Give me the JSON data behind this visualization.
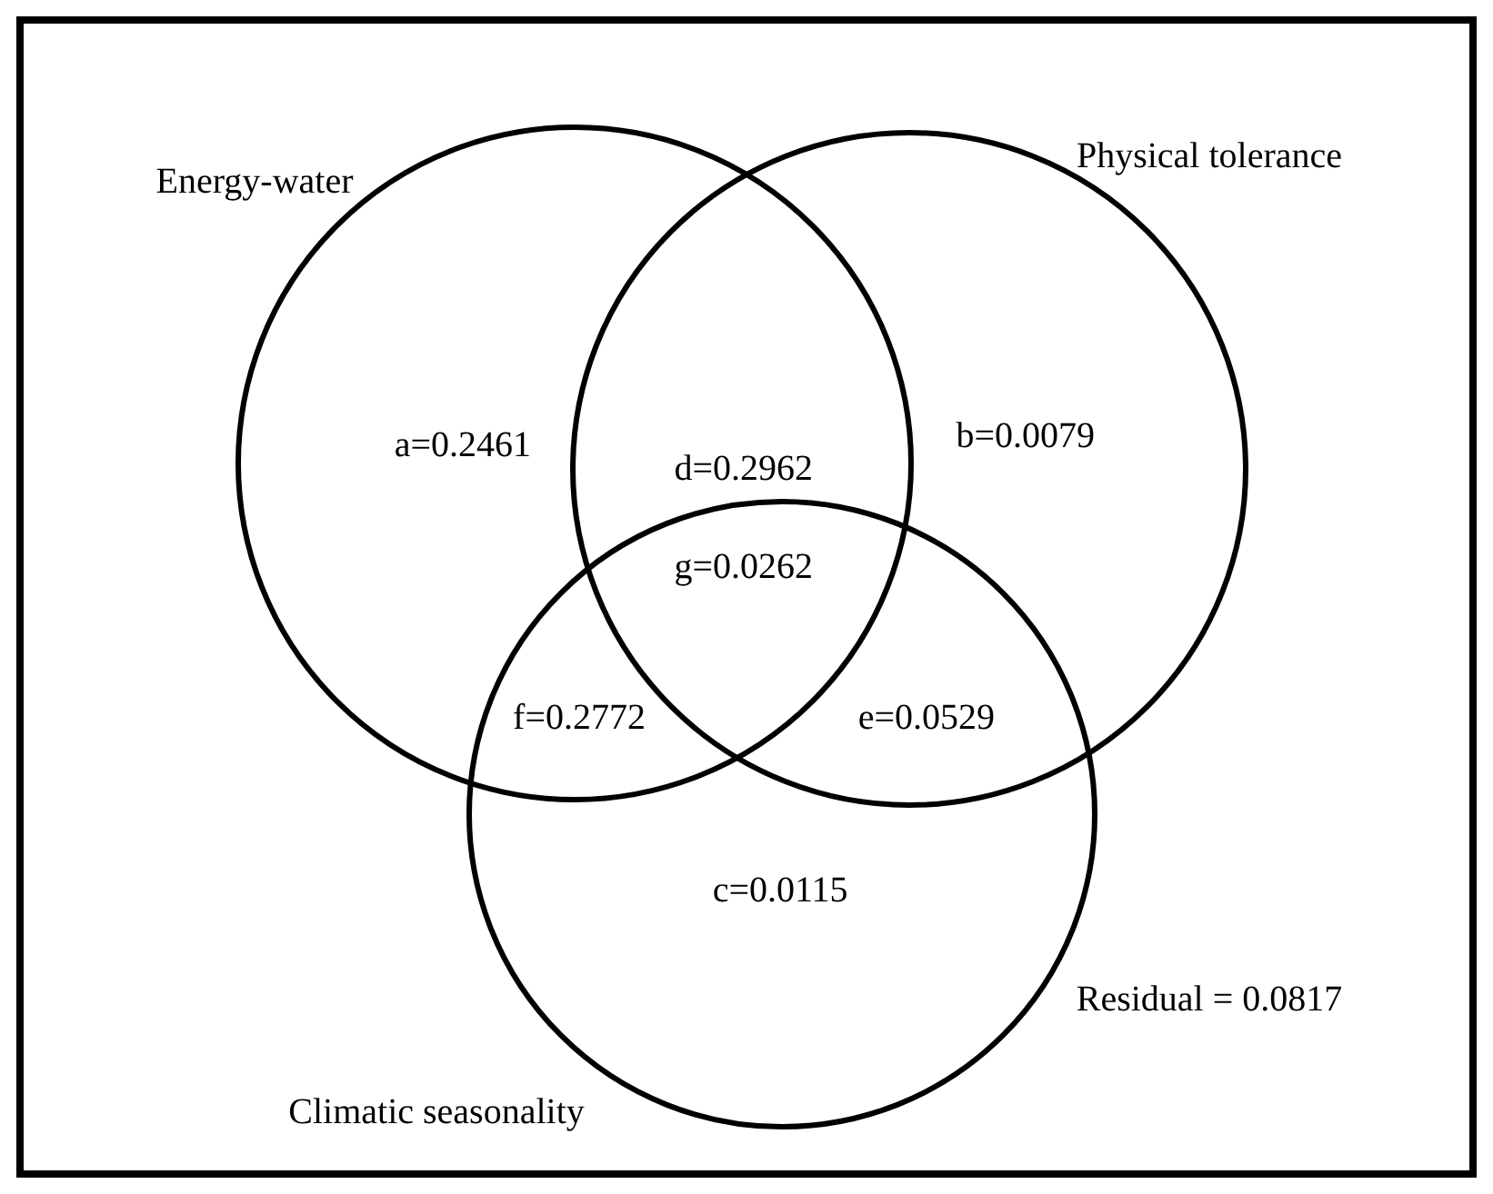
{
  "chart_data": {
    "type": "other",
    "categories": [
      "a=",
      "b=",
      "c=",
      "d=",
      "e=",
      "f=",
      "g="
    ],
    "values": [
      0.2461,
      0.0079,
      0.0115,
      0.2962,
      0.0529,
      0.2772,
      0.0262
    ],
    "data_labels": true,
    "annotations": [
      "Energy-water",
      "Physical tolerance",
      "Climatic seasonality",
      "Residual = 0.0817"
    ]
  }
}
